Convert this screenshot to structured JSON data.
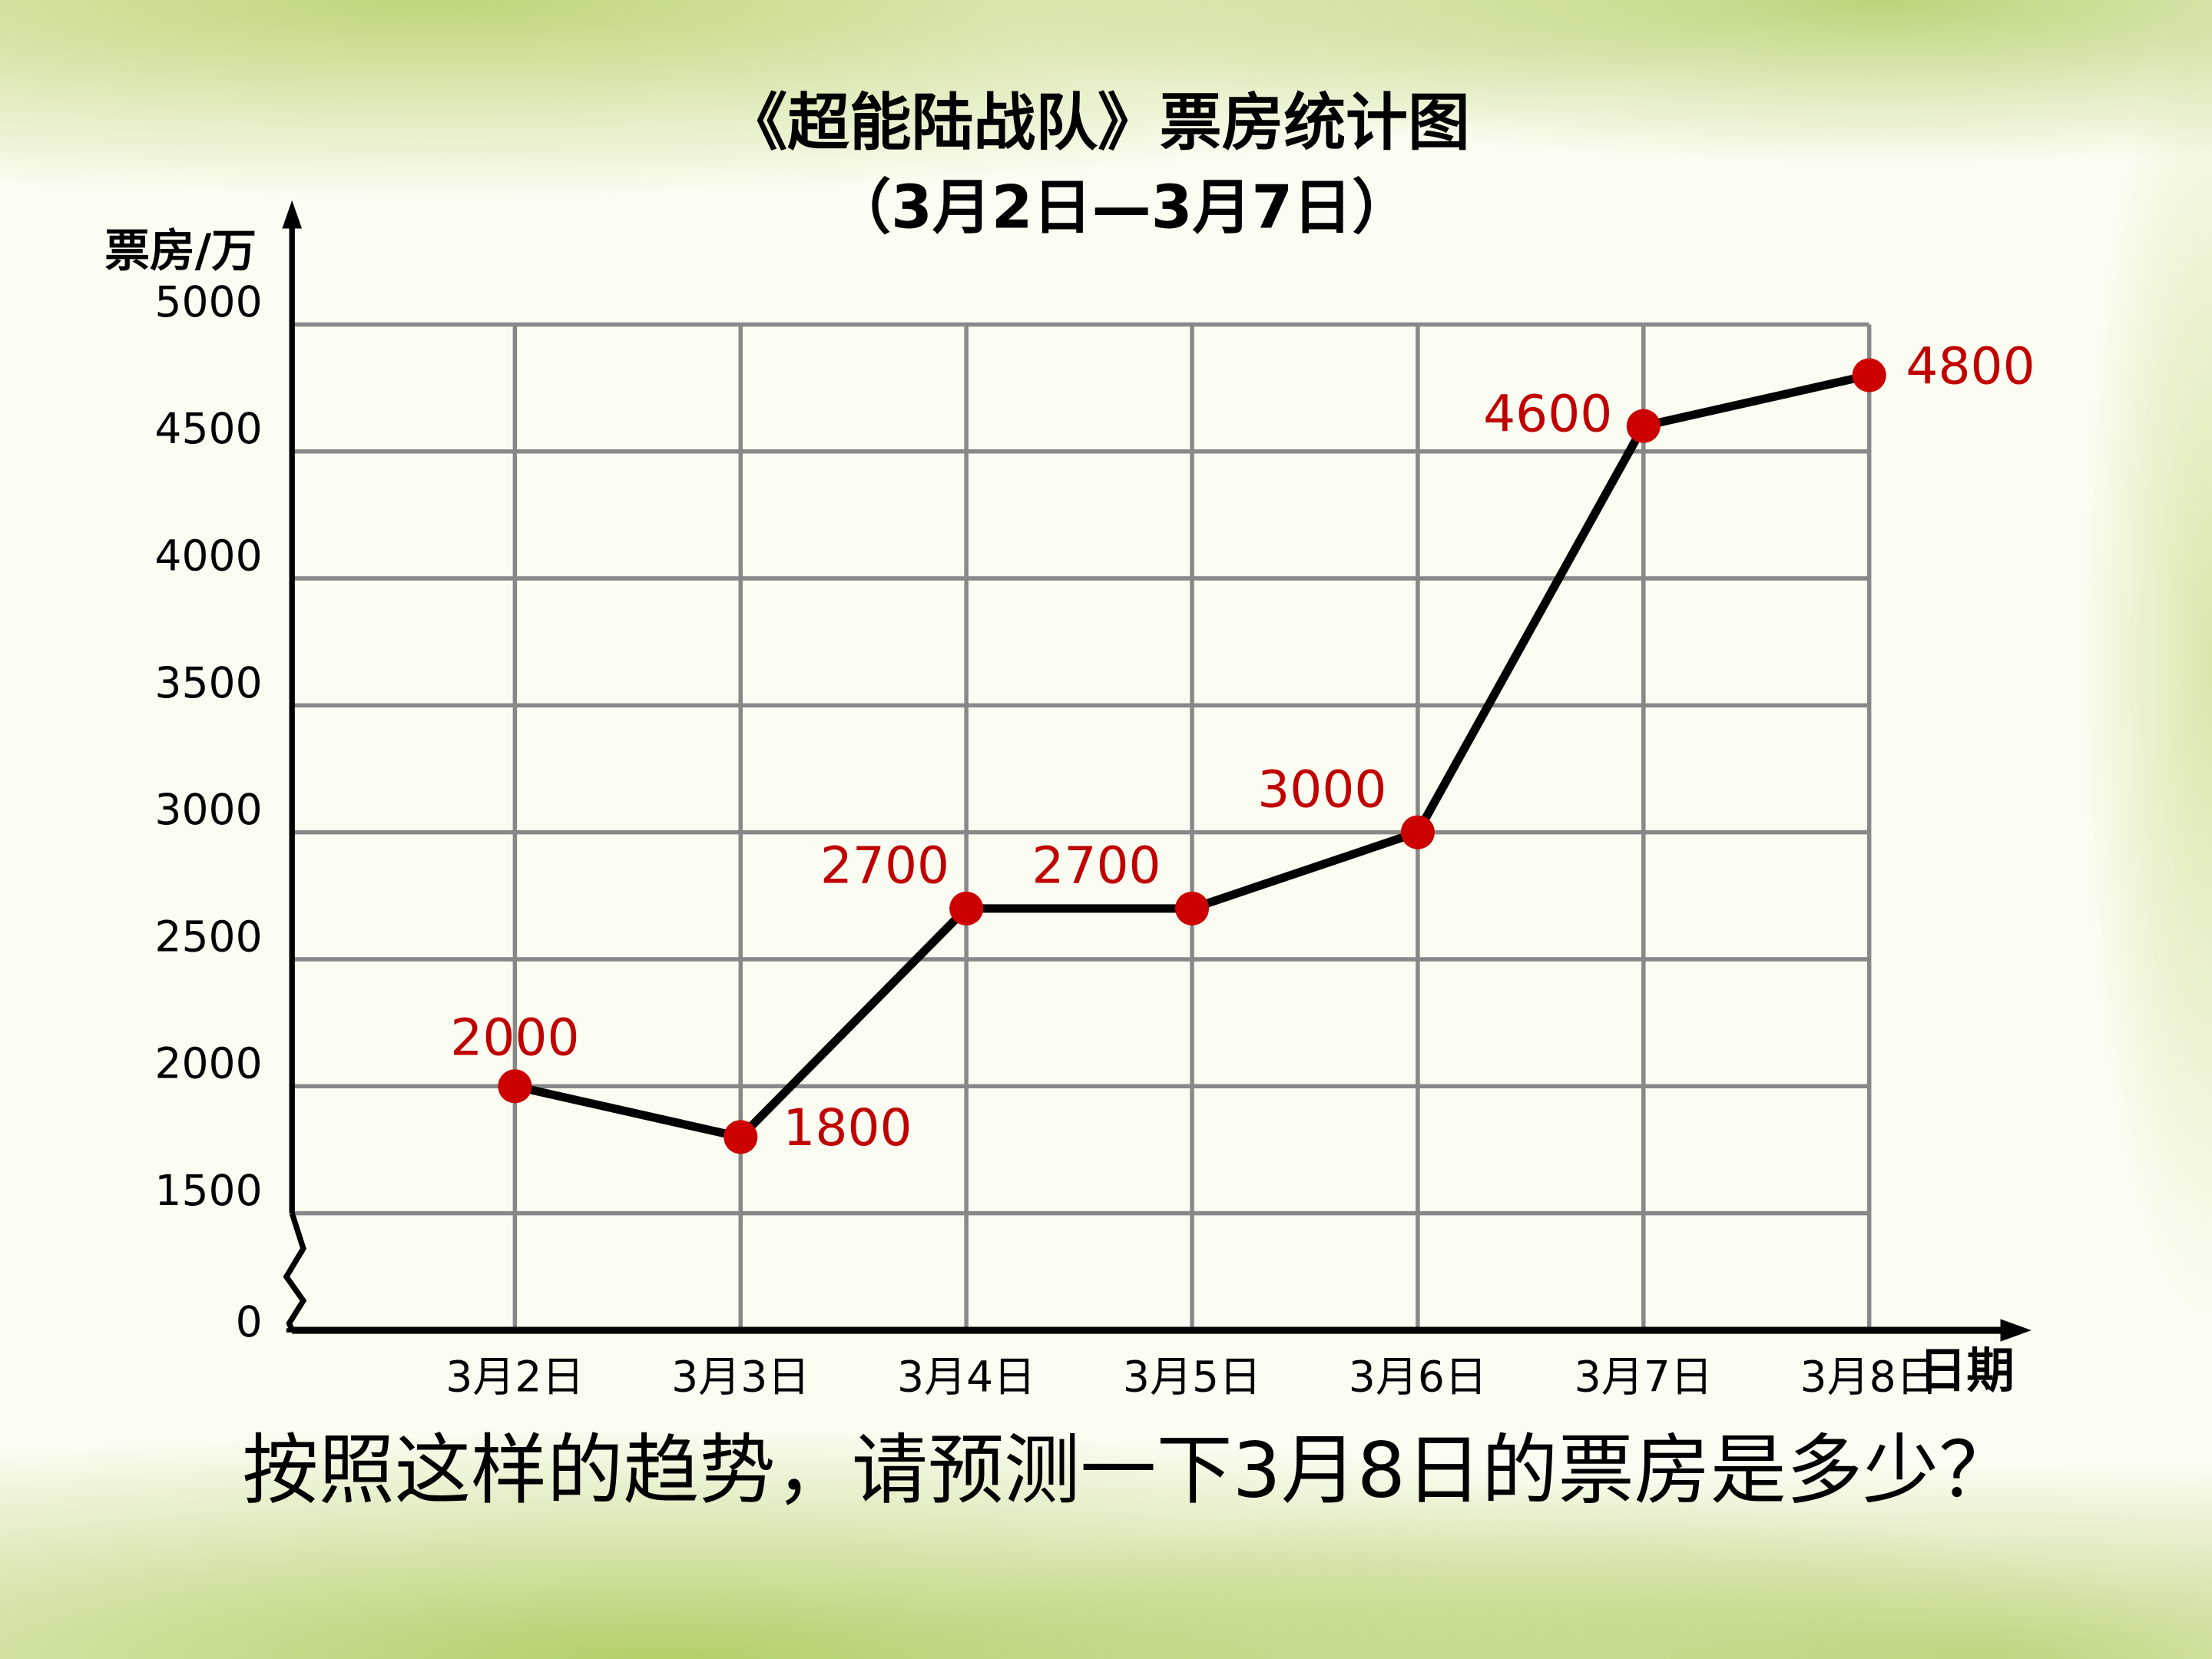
{
  "chart_data": {
    "type": "line",
    "title": "《超能陆战队》票房统计图",
    "subtitle": "（3月2日—3月7日）",
    "y_label": "票房/万",
    "x_label": "日期",
    "question": "按照这样的趋势，请预测一下3月8日的票房是多少？",
    "categories": [
      "3月2日",
      "3月3日",
      "3月4日",
      "3月5日",
      "3月6日",
      "3月7日",
      "3月8日"
    ],
    "values": [
      2000,
      1800,
      2700,
      2700,
      3000,
      4600,
      4800
    ],
    "color": "#000000",
    "marker_color": "#cc0000",
    "label_color": "#c00000",
    "ylim": [
      1500,
      5000
    ],
    "yticks": [
      0,
      1500,
      2000,
      2500,
      3000,
      3500,
      4000,
      4500,
      5000
    ],
    "axis_break": true,
    "grid": true
  }
}
